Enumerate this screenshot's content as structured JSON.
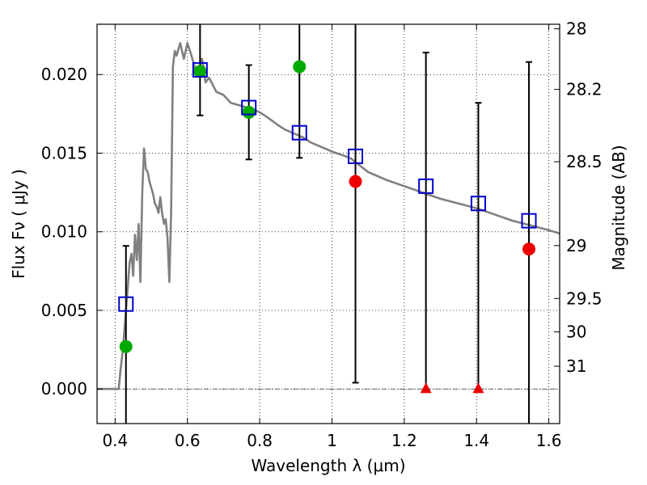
{
  "chart_data": {
    "type": "scatter",
    "title": "",
    "xlabel": "Wavelength  λ (μm)",
    "ylabel": "Flux  Fν  ( μJy )",
    "y2label": "Magnitude (AB)",
    "xlim": [
      0.35,
      1.63
    ],
    "ylim": [
      -0.0022,
      0.0232
    ],
    "grid": true,
    "xticks": [
      "0.4",
      "0.6",
      "0.8",
      "1",
      "1.2",
      "1.4",
      "1.6"
    ],
    "yticks": [
      "0.000",
      "0.005",
      "0.010",
      "0.015",
      "0.020"
    ],
    "y2ticks": [
      "28",
      "28.2",
      "28.5",
      "29",
      "29.5",
      "30",
      "31"
    ],
    "colors": {
      "model": "#808080",
      "model_photometry": "#0000cc",
      "green_points": "#00aa00",
      "red_points": "#ee0000",
      "errorbars": "#000000"
    },
    "series": [
      {
        "type": "line",
        "x": [
          0.35,
          0.41,
          0.415,
          0.42,
          0.425,
          0.43,
          0.435,
          0.44,
          0.445,
          0.45,
          0.455,
          0.46,
          0.465,
          0.47,
          0.475,
          0.48,
          0.485,
          0.49,
          0.495,
          0.5,
          0.505,
          0.51,
          0.515,
          0.52,
          0.525,
          0.53,
          0.535,
          0.54,
          0.545,
          0.55,
          0.555,
          0.56,
          0.565,
          0.57,
          0.58,
          0.59,
          0.6,
          0.61,
          0.62,
          0.63,
          0.64,
          0.645,
          0.65,
          0.66,
          0.68,
          0.7,
          0.72,
          0.75,
          0.78,
          0.8,
          0.82,
          0.85,
          0.87,
          0.9,
          0.92,
          0.94,
          0.96,
          0.98,
          1.0,
          1.05,
          1.1,
          1.15,
          1.2,
          1.25,
          1.3,
          1.35,
          1.4,
          1.45,
          1.5,
          1.55,
          1.6,
          1.63
        ],
        "y": [
          0.0,
          0.0,
          0.0012,
          0.0022,
          0.0035,
          0.005,
          0.0065,
          0.008,
          0.0086,
          0.0072,
          0.0098,
          0.0082,
          0.0105,
          0.0068,
          0.0125,
          0.0153,
          0.014,
          0.0138,
          0.0132,
          0.0128,
          0.0124,
          0.0118,
          0.0116,
          0.0112,
          0.0122,
          0.0112,
          0.0105,
          0.0108,
          0.0096,
          0.0068,
          0.0112,
          0.0205,
          0.0215,
          0.0212,
          0.022,
          0.021,
          0.022,
          0.0213,
          0.0205,
          0.02,
          0.021,
          0.0205,
          0.0195,
          0.0198,
          0.0189,
          0.0187,
          0.0182,
          0.018,
          0.0178,
          0.0176,
          0.0173,
          0.0168,
          0.0165,
          0.0162,
          0.016,
          0.0157,
          0.0155,
          0.0153,
          0.0151,
          0.0147,
          0.0138,
          0.0133,
          0.0129,
          0.0125,
          0.0121,
          0.0118,
          0.0115,
          0.0111,
          0.0107,
          0.0104,
          0.0101,
          0.0099
        ]
      },
      {
        "type": "square",
        "x": [
          0.43,
          0.635,
          0.77,
          0.91,
          1.065,
          1.26,
          1.405,
          1.545
        ],
        "y": [
          0.0054,
          0.0203,
          0.0179,
          0.0163,
          0.0148,
          0.0129,
          0.0118,
          0.0107
        ]
      },
      {
        "type": "circle",
        "x": [
          0.43,
          0.635,
          0.77,
          0.91
        ],
        "y": [
          0.0027,
          0.0202,
          0.0176,
          0.0205
        ]
      },
      {
        "type": "circle",
        "x": [
          1.065,
          1.545
        ],
        "y": [
          0.0132,
          0.0089
        ]
      },
      {
        "type": "triangle",
        "x": [
          1.26,
          1.405
        ],
        "y": [
          0.0,
          0.0
        ]
      }
    ],
    "errorbars": [
      {
        "x": 0.43,
        "low": -0.0022,
        "high": 0.0091
      },
      {
        "x": 0.635,
        "low": 0.0174,
        "high": 0.0232
      },
      {
        "x": 0.77,
        "low": 0.0146,
        "high": 0.0206
      },
      {
        "x": 0.91,
        "low": 0.0147,
        "high": 0.0232
      },
      {
        "x": 1.065,
        "low": 0.0004,
        "high": 0.0232
      },
      {
        "x": 1.26,
        "low": 0.0,
        "high": 0.0214
      },
      {
        "x": 1.405,
        "low": 0.0,
        "high": 0.0182
      },
      {
        "x": 1.545,
        "low": -0.0022,
        "high": 0.0208
      }
    ]
  }
}
